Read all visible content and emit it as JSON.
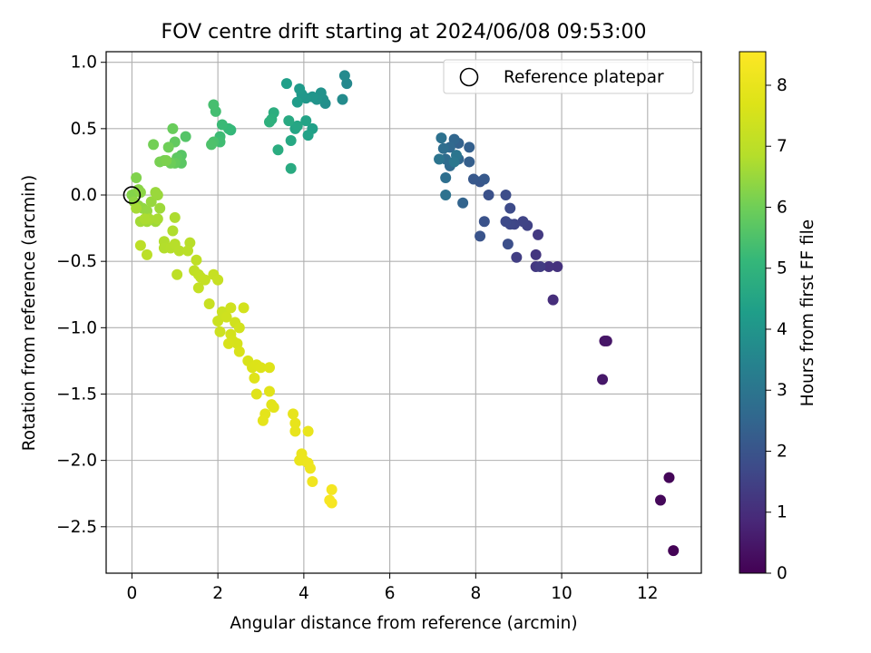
{
  "chart_data": {
    "type": "scatter",
    "title": "FOV centre drift starting at 2024/06/08 09:53:00",
    "xlabel": "Angular distance from reference (arcmin)",
    "ylabel": "Rotation from reference (arcmin)",
    "xlim": [
      -0.6,
      13.25
    ],
    "ylim": [
      -2.85,
      1.08
    ],
    "xticks": [
      0,
      2,
      4,
      6,
      8,
      10,
      12
    ],
    "yticks": [
      1.0,
      0.5,
      0.0,
      -0.5,
      -1.0,
      -1.5,
      -2.0,
      -2.5
    ],
    "xtick_labels": [
      "0",
      "2",
      "4",
      "6",
      "8",
      "10",
      "12"
    ],
    "ytick_labels": [
      "1.0",
      "0.5",
      "0.0",
      "−0.5",
      "−1.0",
      "−1.5",
      "−2.0",
      "−2.5"
    ],
    "grid": true,
    "legend": {
      "placement": "top-right",
      "entries": [
        "Reference platepar"
      ]
    },
    "reference_point": {
      "x": 0,
      "y": 0,
      "marker": "open-circle"
    },
    "colorbar": {
      "label": "Hours from first FF file",
      "colormap": "viridis",
      "range": [
        0,
        8.55
      ],
      "ticks": [
        0,
        1,
        2,
        3,
        4,
        5,
        6,
        7,
        8
      ],
      "tick_labels": [
        "0",
        "1",
        "2",
        "3",
        "4",
        "5",
        "6",
        "7",
        "8"
      ]
    },
    "points": [
      [
        12.6,
        -2.68,
        0.05
      ],
      [
        12.5,
        -2.13,
        0.1
      ],
      [
        12.3,
        -2.3,
        0.15
      ],
      [
        11.0,
        -1.1,
        0.4
      ],
      [
        11.05,
        -1.1,
        0.45
      ],
      [
        10.95,
        -1.39,
        0.5
      ],
      [
        9.8,
        -0.79,
        1.0
      ],
      [
        9.9,
        -0.54,
        1.1
      ],
      [
        9.7,
        -0.54,
        1.15
      ],
      [
        9.4,
        -0.45,
        1.2
      ],
      [
        9.4,
        -0.54,
        1.25
      ],
      [
        9.45,
        -0.3,
        1.3
      ],
      [
        9.5,
        -0.54,
        1.35
      ],
      [
        8.95,
        -0.47,
        1.4
      ],
      [
        9.2,
        -0.23,
        1.5
      ],
      [
        9.1,
        -0.2,
        1.55
      ],
      [
        8.9,
        -0.22,
        1.6
      ],
      [
        8.8,
        -0.22,
        1.65
      ],
      [
        8.7,
        -0.2,
        1.7
      ],
      [
        8.8,
        -0.1,
        1.75
      ],
      [
        8.7,
        0.0,
        1.8
      ],
      [
        8.75,
        -0.37,
        1.85
      ],
      [
        8.3,
        0.0,
        1.9
      ],
      [
        8.2,
        -0.2,
        1.95
      ],
      [
        8.1,
        -0.31,
        2.0
      ],
      [
        8.1,
        0.1,
        2.05
      ],
      [
        7.95,
        0.12,
        2.1
      ],
      [
        8.2,
        0.12,
        2.15
      ],
      [
        7.85,
        0.25,
        2.3
      ],
      [
        7.85,
        0.36,
        2.35
      ],
      [
        7.6,
        0.39,
        2.4
      ],
      [
        7.7,
        -0.06,
        2.45
      ],
      [
        7.6,
        0.27,
        2.5
      ],
      [
        7.5,
        0.42,
        2.55
      ],
      [
        7.4,
        0.36,
        2.6
      ],
      [
        7.4,
        0.22,
        2.65
      ],
      [
        7.3,
        0.27,
        2.7
      ],
      [
        7.25,
        0.35,
        2.75
      ],
      [
        7.3,
        0.13,
        2.8
      ],
      [
        7.2,
        0.43,
        2.85
      ],
      [
        7.3,
        0.0,
        2.9
      ],
      [
        7.15,
        0.27,
        2.95
      ],
      [
        7.55,
        0.3,
        3.0
      ],
      [
        7.5,
        0.25,
        3.05
      ],
      [
        5.0,
        0.84,
        3.6
      ],
      [
        4.95,
        0.9,
        3.65
      ],
      [
        4.9,
        0.72,
        3.7
      ],
      [
        4.5,
        0.69,
        3.8
      ],
      [
        4.45,
        0.72,
        3.85
      ],
      [
        4.4,
        0.77,
        3.9
      ],
      [
        4.3,
        0.72,
        3.95
      ],
      [
        4.2,
        0.74,
        4.0
      ],
      [
        4.05,
        0.73,
        4.05
      ],
      [
        3.95,
        0.76,
        4.1
      ],
      [
        3.9,
        0.8,
        4.15
      ],
      [
        3.85,
        0.7,
        4.2
      ],
      [
        3.6,
        0.84,
        4.3
      ],
      [
        4.2,
        0.5,
        4.35
      ],
      [
        4.1,
        0.45,
        4.4
      ],
      [
        4.05,
        0.56,
        4.45
      ],
      [
        3.8,
        0.5,
        4.5
      ],
      [
        3.85,
        0.52,
        4.55
      ],
      [
        3.7,
        0.41,
        4.6
      ],
      [
        3.65,
        0.56,
        4.65
      ],
      [
        3.7,
        0.2,
        4.7
      ],
      [
        3.4,
        0.34,
        4.75
      ],
      [
        3.3,
        0.62,
        4.8
      ],
      [
        3.25,
        0.57,
        4.85
      ],
      [
        3.2,
        0.55,
        4.9
      ],
      [
        2.3,
        0.49,
        5.1
      ],
      [
        2.25,
        0.5,
        5.15
      ],
      [
        2.1,
        0.53,
        5.2
      ],
      [
        2.05,
        0.44,
        5.25
      ],
      [
        2.05,
        0.4,
        5.3
      ],
      [
        1.95,
        0.63,
        5.35
      ],
      [
        1.9,
        0.68,
        5.4
      ],
      [
        1.9,
        0.4,
        5.45
      ],
      [
        1.85,
        0.38,
        5.5
      ],
      [
        1.25,
        0.44,
        5.6
      ],
      [
        1.15,
        0.3,
        5.65
      ],
      [
        1.15,
        0.24,
        5.7
      ],
      [
        1.05,
        0.28,
        5.75
      ],
      [
        1.0,
        0.4,
        5.8
      ],
      [
        1.0,
        0.24,
        5.85
      ],
      [
        0.95,
        0.5,
        5.9
      ],
      [
        0.9,
        0.24,
        5.95
      ],
      [
        0.85,
        0.36,
        5.98
      ],
      [
        0.75,
        0.26,
        6.0
      ],
      [
        0.5,
        0.38,
        6.05
      ],
      [
        0.65,
        0.25,
        6.1
      ],
      [
        0.8,
        0.26,
        6.15
      ],
      [
        0.1,
        0.13,
        6.2
      ],
      [
        0.0,
        0.0,
        6.25
      ],
      [
        0.15,
        0.04,
        6.3
      ],
      [
        0.2,
        0.02,
        6.35
      ],
      [
        0.05,
        -0.05,
        6.38
      ],
      [
        0.15,
        -0.08,
        6.4
      ],
      [
        0.25,
        -0.1,
        6.42
      ],
      [
        0.35,
        -0.12,
        6.45
      ],
      [
        0.45,
        -0.05,
        6.48
      ],
      [
        0.55,
        0.02,
        6.5
      ],
      [
        0.6,
        0.0,
        6.52
      ],
      [
        0.65,
        -0.1,
        6.55
      ],
      [
        0.55,
        -0.2,
        6.58
      ],
      [
        0.35,
        -0.2,
        6.6
      ],
      [
        0.2,
        -0.2,
        6.62
      ],
      [
        0.1,
        -0.1,
        6.65
      ],
      [
        0.6,
        -0.18,
        6.68
      ],
      [
        0.4,
        -0.18,
        6.7
      ],
      [
        0.3,
        -0.18,
        6.72
      ],
      [
        1.0,
        -0.17,
        6.75
      ],
      [
        0.95,
        -0.27,
        6.78
      ],
      [
        0.75,
        -0.35,
        6.8
      ],
      [
        0.75,
        -0.4,
        6.82
      ],
      [
        0.9,
        -0.4,
        6.85
      ],
      [
        1.0,
        -0.37,
        6.88
      ],
      [
        1.1,
        -0.42,
        6.9
      ],
      [
        1.35,
        -0.36,
        6.92
      ],
      [
        1.3,
        -0.42,
        6.95
      ],
      [
        0.35,
        -0.45,
        6.97
      ],
      [
        0.2,
        -0.38,
        7.0
      ],
      [
        1.05,
        -0.6,
        7.02
      ],
      [
        1.5,
        -0.49,
        7.05
      ],
      [
        1.45,
        -0.57,
        7.08
      ],
      [
        1.55,
        -0.6,
        7.1
      ],
      [
        1.6,
        -0.62,
        7.12
      ],
      [
        1.55,
        -0.7,
        7.15
      ],
      [
        1.7,
        -0.64,
        7.18
      ],
      [
        1.9,
        -0.6,
        7.2
      ],
      [
        2.0,
        -0.64,
        7.22
      ],
      [
        1.8,
        -0.82,
        7.25
      ],
      [
        2.1,
        -0.88,
        7.3
      ],
      [
        2.0,
        -0.95,
        7.32
      ],
      [
        2.05,
        -1.03,
        7.35
      ],
      [
        2.2,
        -0.92,
        7.38
      ],
      [
        2.3,
        -0.85,
        7.4
      ],
      [
        2.4,
        -0.96,
        7.42
      ],
      [
        2.5,
        -1.0,
        7.45
      ],
      [
        2.6,
        -0.85,
        7.48
      ],
      [
        2.3,
        -1.05,
        7.5
      ],
      [
        2.35,
        -1.1,
        7.52
      ],
      [
        2.45,
        -1.12,
        7.55
      ],
      [
        2.25,
        -1.12,
        7.58
      ],
      [
        2.5,
        -1.18,
        7.6
      ],
      [
        2.7,
        -1.25,
        7.62
      ],
      [
        2.8,
        -1.3,
        7.65
      ],
      [
        2.9,
        -1.28,
        7.68
      ],
      [
        3.0,
        -1.3,
        7.7
      ],
      [
        3.2,
        -1.3,
        7.72
      ],
      [
        2.85,
        -1.38,
        7.75
      ],
      [
        2.9,
        -1.5,
        7.78
      ],
      [
        3.2,
        -1.48,
        7.8
      ],
      [
        3.25,
        -1.58,
        7.82
      ],
      [
        3.3,
        -1.6,
        7.85
      ],
      [
        3.1,
        -1.65,
        7.88
      ],
      [
        3.05,
        -1.7,
        7.9
      ],
      [
        3.75,
        -1.65,
        7.95
      ],
      [
        3.8,
        -1.72,
        7.98
      ],
      [
        3.8,
        -1.78,
        8.0
      ],
      [
        4.1,
        -1.78,
        8.02
      ],
      [
        3.9,
        -2.0,
        8.05
      ],
      [
        3.95,
        -1.95,
        8.08
      ],
      [
        4.0,
        -2.0,
        8.1
      ],
      [
        4.1,
        -2.02,
        8.12
      ],
      [
        4.15,
        -2.06,
        8.15
      ],
      [
        4.2,
        -2.16,
        8.2
      ],
      [
        4.65,
        -2.22,
        8.3
      ],
      [
        4.65,
        -2.32,
        8.35
      ],
      [
        4.6,
        -2.3,
        8.4
      ]
    ]
  }
}
